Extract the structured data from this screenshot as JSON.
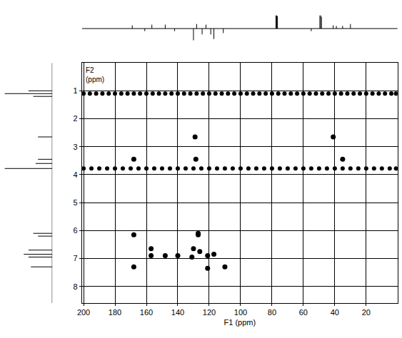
{
  "chart_data": {
    "type": "scatter",
    "x_label": "F1 (ppm)",
    "y_label": "F2 (ppm)",
    "xlim": [
      201,
      0
    ],
    "xticks": [
      200,
      180,
      160,
      140,
      120,
      100,
      80,
      60,
      40,
      20
    ],
    "ylim": [
      8.6,
      0
    ],
    "yticks": [
      1,
      2,
      3,
      4,
      5,
      6,
      7,
      8
    ],
    "grid": true,
    "color": "#000000",
    "marker": "circle",
    "series": [
      {
        "type": "scatter",
        "x": [
          129,
          41,
          128.5,
          35,
          168,
          168,
          127,
          127,
          157,
          130,
          126,
          157,
          148,
          140,
          121,
          117,
          131,
          168,
          110,
          121
        ],
        "y": [
          2.65,
          2.65,
          3.45,
          3.45,
          3.45,
          6.15,
          6.15,
          6.1,
          6.65,
          6.65,
          6.75,
          6.9,
          6.9,
          6.9,
          6.9,
          6.85,
          6.95,
          7.3,
          7.3,
          7.35
        ]
      },
      {
        "type": "scatter",
        "x": [
          200,
          196,
          192,
          188,
          184,
          180,
          176,
          172,
          168,
          164,
          160,
          156,
          152,
          148,
          144,
          140,
          136,
          132,
          128,
          124,
          120,
          116,
          112,
          108,
          104,
          100,
          96,
          92,
          88,
          84,
          80,
          76,
          72,
          68,
          64,
          60,
          56,
          52,
          48,
          44,
          40,
          36,
          32,
          28,
          24,
          20,
          16,
          12,
          8,
          4,
          1
        ],
        "y": [
          1.1,
          1.1,
          1.1,
          1.1,
          1.1,
          1.1,
          1.1,
          1.1,
          1.1,
          1.1,
          1.1,
          1.1,
          1.1,
          1.1,
          1.1,
          1.1,
          1.1,
          1.1,
          1.1,
          1.1,
          1.1,
          1.1,
          1.1,
          1.1,
          1.1,
          1.1,
          1.1,
          1.1,
          1.1,
          1.1,
          1.1,
          1.1,
          1.1,
          1.1,
          1.1,
          1.1,
          1.1,
          1.1,
          1.1,
          1.1,
          1.1,
          1.1,
          1.1,
          1.1,
          1.1,
          1.1,
          1.1,
          1.1,
          1.1,
          1.1,
          1.1
        ]
      },
      {
        "type": "scatter",
        "x": [
          200,
          195,
          190,
          185,
          180,
          175,
          170,
          165,
          160,
          155,
          150,
          145,
          140,
          135,
          130,
          125,
          120,
          115,
          110,
          105,
          100,
          95,
          90,
          85,
          80,
          75,
          70,
          65,
          60,
          55,
          50,
          45,
          40,
          35,
          30,
          25,
          20,
          15,
          10,
          5,
          1
        ],
        "y": [
          3.78,
          3.78,
          3.78,
          3.78,
          3.78,
          3.78,
          3.78,
          3.78,
          3.78,
          3.78,
          3.78,
          3.78,
          3.78,
          3.78,
          3.78,
          3.78,
          3.78,
          3.78,
          3.78,
          3.78,
          3.78,
          3.78,
          3.78,
          3.78,
          3.78,
          3.78,
          3.78,
          3.78,
          3.78,
          3.78,
          3.78,
          3.78,
          3.78,
          3.78,
          3.78,
          3.78,
          3.78,
          3.78,
          3.78,
          3.78,
          3.78
        ]
      }
    ],
    "f1_projection": {
      "x": [
        169,
        161,
        156.5,
        148,
        142,
        130,
        128,
        124.5,
        122,
        119,
        117,
        111,
        77.5,
        77,
        76.5,
        49.5,
        49,
        48.5,
        55,
        41,
        39,
        35,
        30
      ],
      "values": [
        0.25,
        -0.2,
        0.3,
        0.3,
        -0.2,
        -0.9,
        0.35,
        -0.45,
        0.3,
        -0.45,
        -0.8,
        -0.35,
        1.0,
        1.0,
        0.95,
        1.0,
        1.0,
        0.9,
        -0.2,
        0.25,
        0.2,
        0.2,
        0.35
      ]
    },
    "f2_projection": {
      "x": [
        1.0,
        1.1,
        1.2,
        2.65,
        3.45,
        3.6,
        3.78,
        6.1,
        6.2,
        6.7,
        6.85,
        6.95,
        7.3
      ],
      "values": [
        0.5,
        1.0,
        0.4,
        0.3,
        0.3,
        0.35,
        1.0,
        0.4,
        0.3,
        0.5,
        0.6,
        0.5,
        0.45
      ]
    }
  }
}
